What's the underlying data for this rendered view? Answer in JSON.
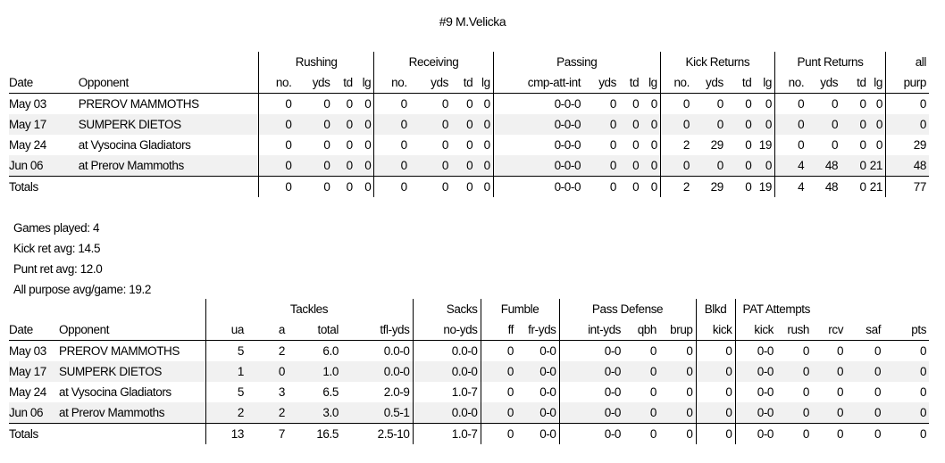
{
  "title": "#9 M.Velicka",
  "offense": {
    "groups": [
      "Rushing",
      "Receiving",
      "Passing",
      "Kick Returns",
      "Punt Returns",
      "all"
    ],
    "headers": [
      "Date",
      "Opponent",
      "no.",
      "yds",
      "td",
      "lg",
      "no.",
      "yds",
      "td",
      "lg",
      "cmp-att-int",
      "yds",
      "td",
      "lg",
      "no.",
      "yds",
      "td",
      "lg",
      "no.",
      "yds",
      "td",
      "lg",
      "purp"
    ],
    "rows": [
      [
        "May 03",
        "PREROV MAMMOTHS",
        "0",
        "0",
        "0",
        "0",
        "0",
        "0",
        "0",
        "0",
        "0-0-0",
        "0",
        "0",
        "0",
        "0",
        "0",
        "0",
        "0",
        "0",
        "0",
        "0",
        "0",
        "0"
      ],
      [
        "May 17",
        "SUMPERK DIETOS",
        "0",
        "0",
        "0",
        "0",
        "0",
        "0",
        "0",
        "0",
        "0-0-0",
        "0",
        "0",
        "0",
        "0",
        "0",
        "0",
        "0",
        "0",
        "0",
        "0",
        "0",
        "0"
      ],
      [
        "May 24",
        "at Vysocina Gladiators",
        "0",
        "0",
        "0",
        "0",
        "0",
        "0",
        "0",
        "0",
        "0-0-0",
        "0",
        "0",
        "0",
        "2",
        "29",
        "0",
        "19",
        "0",
        "0",
        "0",
        "0",
        "29"
      ],
      [
        "Jun 06",
        "at Prerov Mammoths",
        "0",
        "0",
        "0",
        "0",
        "0",
        "0",
        "0",
        "0",
        "0-0-0",
        "0",
        "0",
        "0",
        "0",
        "0",
        "0",
        "0",
        "4",
        "48",
        "0",
        "21",
        "48"
      ]
    ],
    "totals": [
      "Totals",
      "",
      "0",
      "0",
      "0",
      "0",
      "0",
      "0",
      "0",
      "0",
      "0-0-0",
      "0",
      "0",
      "0",
      "2",
      "29",
      "0",
      "19",
      "4",
      "48",
      "0",
      "21",
      "77"
    ]
  },
  "summary": {
    "games_played": "Games played: 4",
    "kick_ret_avg": "Kick ret avg: 14.5",
    "punt_ret_avg": "Punt ret avg: 12.0",
    "all_purpose_avg": "All purpose avg/game: 19.2"
  },
  "defense": {
    "groups": [
      "Tackles",
      "Sacks",
      "Fumble",
      "Pass Defense",
      "Blkd",
      "PAT Attempts"
    ],
    "headers": [
      "Date",
      "Opponent",
      "ua",
      "a",
      "total",
      "tfl-yds",
      "no-yds",
      "ff",
      "fr-yds",
      "int-yds",
      "qbh",
      "brup",
      "kick",
      "kick",
      "rush",
      "rcv",
      "saf",
      "pts"
    ],
    "rows": [
      [
        "May 03",
        "PREROV MAMMOTHS",
        "5",
        "2",
        "6.0",
        "0.0-0",
        "0.0-0",
        "0",
        "0-0",
        "0-0",
        "0",
        "0",
        "0",
        "0-0",
        "0",
        "0",
        "0",
        "0"
      ],
      [
        "May 17",
        "SUMPERK DIETOS",
        "1",
        "0",
        "1.0",
        "0.0-0",
        "0.0-0",
        "0",
        "0-0",
        "0-0",
        "0",
        "0",
        "0",
        "0-0",
        "0",
        "0",
        "0",
        "0"
      ],
      [
        "May 24",
        "at Vysocina Gladiators",
        "5",
        "3",
        "6.5",
        "2.0-9",
        "1.0-7",
        "0",
        "0-0",
        "0-0",
        "0",
        "0",
        "0",
        "0-0",
        "0",
        "0",
        "0",
        "0"
      ],
      [
        "Jun 06",
        "at Prerov Mammoths",
        "2",
        "2",
        "3.0",
        "0.5-1",
        "0.0-0",
        "0",
        "0-0",
        "0-0",
        "0",
        "0",
        "0",
        "0-0",
        "0",
        "0",
        "0",
        "0"
      ]
    ],
    "totals": [
      "Totals",
      "",
      "13",
      "7",
      "16.5",
      "2.5-10",
      "1.0-7",
      "0",
      "0-0",
      "0-0",
      "0",
      "0",
      "0",
      "0-0",
      "0",
      "0",
      "0",
      "0"
    ]
  }
}
